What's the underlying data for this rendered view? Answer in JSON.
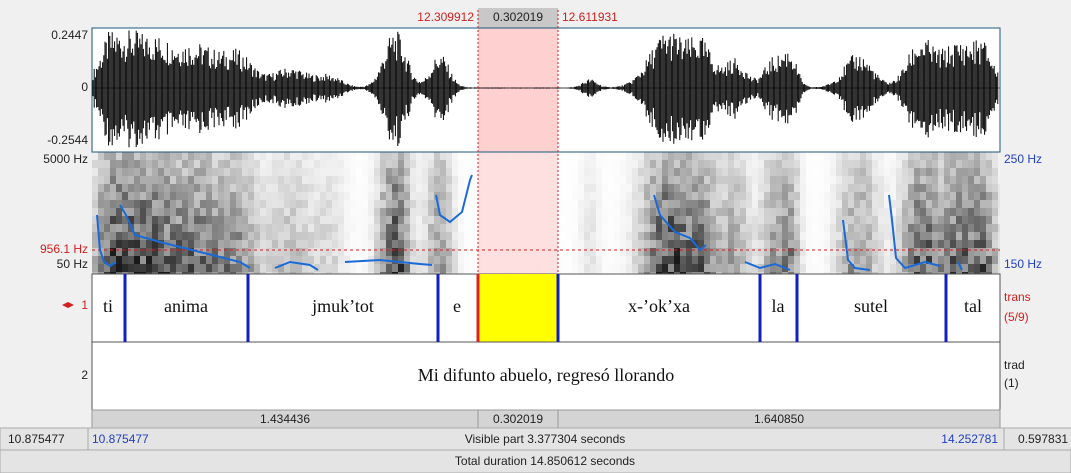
{
  "selection": {
    "start": "12.309912",
    "duration": "0.302019",
    "end": "12.611931"
  },
  "waveform": {
    "max": "0.2447",
    "zero": "0",
    "min": "-0.2544"
  },
  "spectrogram": {
    "top": "5000 Hz",
    "cursor": "956.1 Hz",
    "bottom": "50 Hz",
    "pitch_top": "250 Hz",
    "pitch_bottom": "150 Hz"
  },
  "tiers": [
    {
      "number": "1",
      "name": "trans",
      "count": "(5/9)",
      "intervals": [
        "ti",
        "anima",
        "jmuk’tot",
        "e",
        "x-’ok’xa",
        "la",
        "sutel",
        "tal"
      ]
    },
    {
      "number": "2",
      "name": "trad",
      "count": "(1)",
      "intervals": [
        "Mi difunto abuelo, regresó llorando"
      ]
    }
  ],
  "durations": [
    "1.434436",
    "0.302019",
    "1.640850"
  ],
  "visible": {
    "left_outside": "10.875477",
    "start": "10.875477",
    "label": "Visible part 3.377304 seconds",
    "end": "14.252781",
    "right_outside": "0.597831"
  },
  "total": "Total duration 14.850612 seconds"
}
